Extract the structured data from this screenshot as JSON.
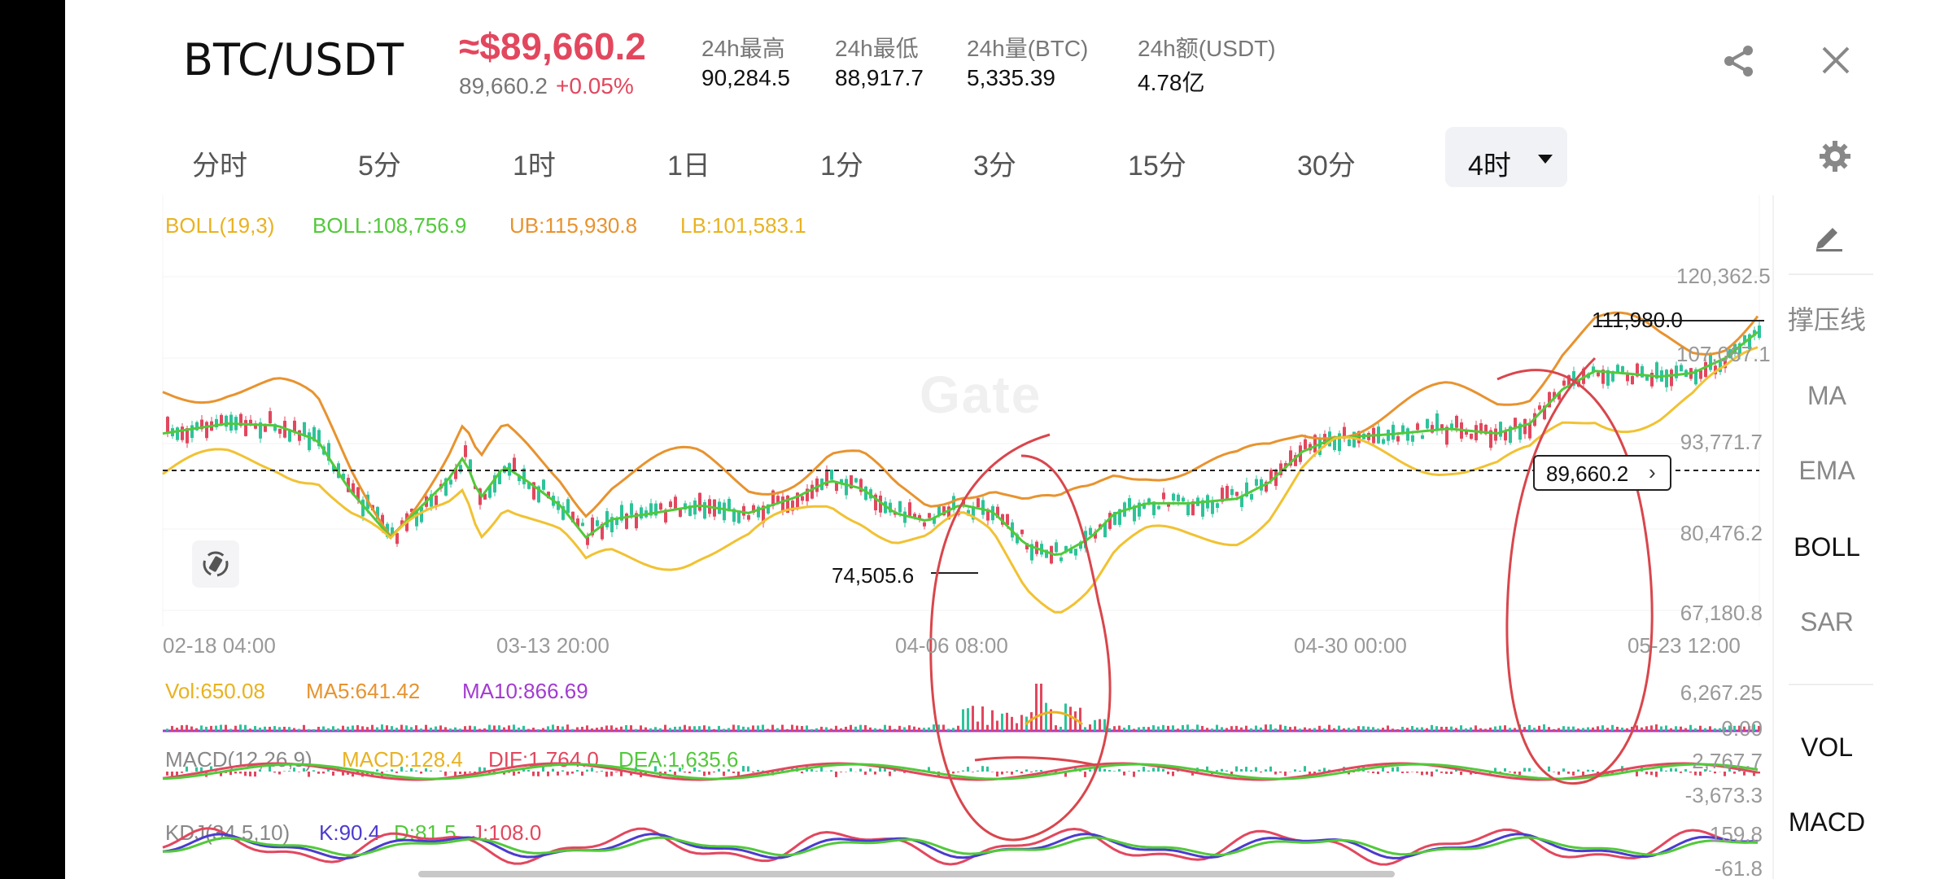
{
  "header": {
    "pair": "BTC/USDT",
    "price_usd": "≈$89,660.2",
    "last_price": "89,660.2",
    "change_pct": "+0.05%",
    "stats": [
      {
        "label": "24h最高",
        "value": "90,284.5"
      },
      {
        "label": "24h最低",
        "value": "88,917.7"
      },
      {
        "label": "24h量(BTC)",
        "value": "5,335.39"
      },
      {
        "label": "24h额(USDT)",
        "value": "4.78亿"
      }
    ]
  },
  "timeframes": [
    "分时",
    "5分",
    "1时",
    "1日",
    "1分",
    "3分",
    "15分",
    "30分"
  ],
  "active_timeframe": "4时",
  "indicators": {
    "boll": {
      "name": "BOLL(19,3)",
      "mid": "BOLL:108,756.9",
      "ub": "UB:115,930.8",
      "lb": "LB:101,583.1"
    },
    "vol": {
      "name": "Vol:650.08",
      "ma5": "MA5:641.42",
      "ma10": "MA10:866.69"
    },
    "macd": {
      "name": "MACD(12,26,9)",
      "macd": "MACD:128.4",
      "dif": "DIF:1,764.0",
      "dea": "DEA:1,635.6"
    },
    "kdj": {
      "name": "KDJ(34,5,10)",
      "k": "K:90.4",
      "d": "D:81.5",
      "j": "J:108.0"
    }
  },
  "axes": {
    "main_y": [
      "120,362.5",
      "107,067.1",
      "93,771.7",
      "80,476.2",
      "67,180.8"
    ],
    "x": [
      "02-18 04:00",
      "03-13 20:00",
      "04-06 08:00",
      "04-30 00:00",
      "05-23 12:00"
    ],
    "vol_y": [
      "6,267.25",
      "0.00"
    ],
    "macd_y": [
      "2,767.7",
      "-3,673.3"
    ],
    "kdj_y": [
      "159.8",
      "-61.8"
    ]
  },
  "annotations": {
    "high": "111,980.0",
    "low": "74,505.6",
    "current": "89,660.2"
  },
  "watermark": "Gate",
  "sidebar": [
    "撑压线",
    "MA",
    "EMA",
    "BOLL",
    "SAR",
    "VOL",
    "MACD"
  ],
  "colors": {
    "up": "#2ec39a",
    "down": "#e2475e",
    "boll_mid": "#52c93a",
    "boll_ub": "#e8932e",
    "boll_lb": "#f1c232",
    "annotation": "#d9464c"
  }
}
